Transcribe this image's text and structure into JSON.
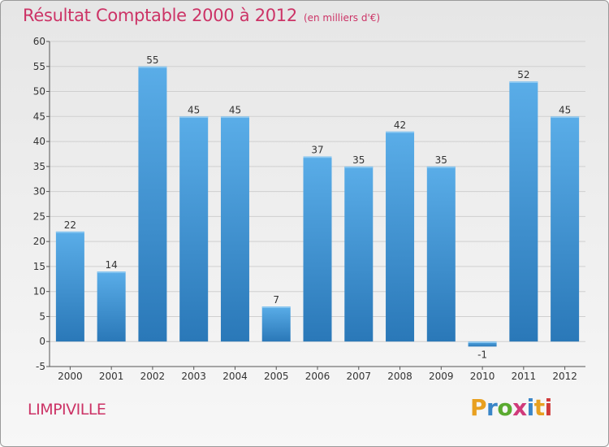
{
  "title": {
    "main": "Résultat Comptable 2000 à 2012",
    "unit": "(en milliers d'€)"
  },
  "town": "LIMPIVILLE",
  "logo": {
    "letters": [
      "P",
      "r",
      "o",
      "x",
      "i",
      "t",
      "i"
    ],
    "colors": [
      "#e8a020",
      "#3a86c8",
      "#5aaa30",
      "#d03a7a",
      "#3a86c8",
      "#e8a020",
      "#d03a3a"
    ]
  },
  "colors": {
    "bar_top": "#5aade8",
    "bar_bottom": "#2a78b8",
    "grid": "#cfcfcf",
    "text_accent": "#cc3366"
  },
  "chart_data": {
    "type": "bar",
    "categories": [
      "2000",
      "2001",
      "2002",
      "2003",
      "2004",
      "2005",
      "2006",
      "2007",
      "2008",
      "2009",
      "2010",
      "2011",
      "2012"
    ],
    "values": [
      22,
      14,
      55,
      45,
      45,
      7,
      37,
      35,
      42,
      35,
      -1,
      52,
      45
    ],
    "value_labels": [
      "22",
      "14",
      "55",
      "45",
      "45",
      "7",
      "37",
      "35",
      "42",
      "35",
      "-1",
      "52",
      "45"
    ],
    "title": "Résultat Comptable 2000 à 2012",
    "xlabel": "",
    "ylabel": "",
    "ylim": [
      -5,
      60
    ],
    "yticks": [
      -5,
      0,
      5,
      10,
      15,
      20,
      25,
      30,
      35,
      40,
      45,
      50,
      55,
      60
    ],
    "ytick_labels": [
      "-5",
      "0",
      "5",
      "10",
      "15",
      "20",
      "25",
      "30",
      "35",
      "40",
      "45",
      "50",
      "55",
      "60"
    ],
    "grid": true,
    "legend": "none"
  }
}
